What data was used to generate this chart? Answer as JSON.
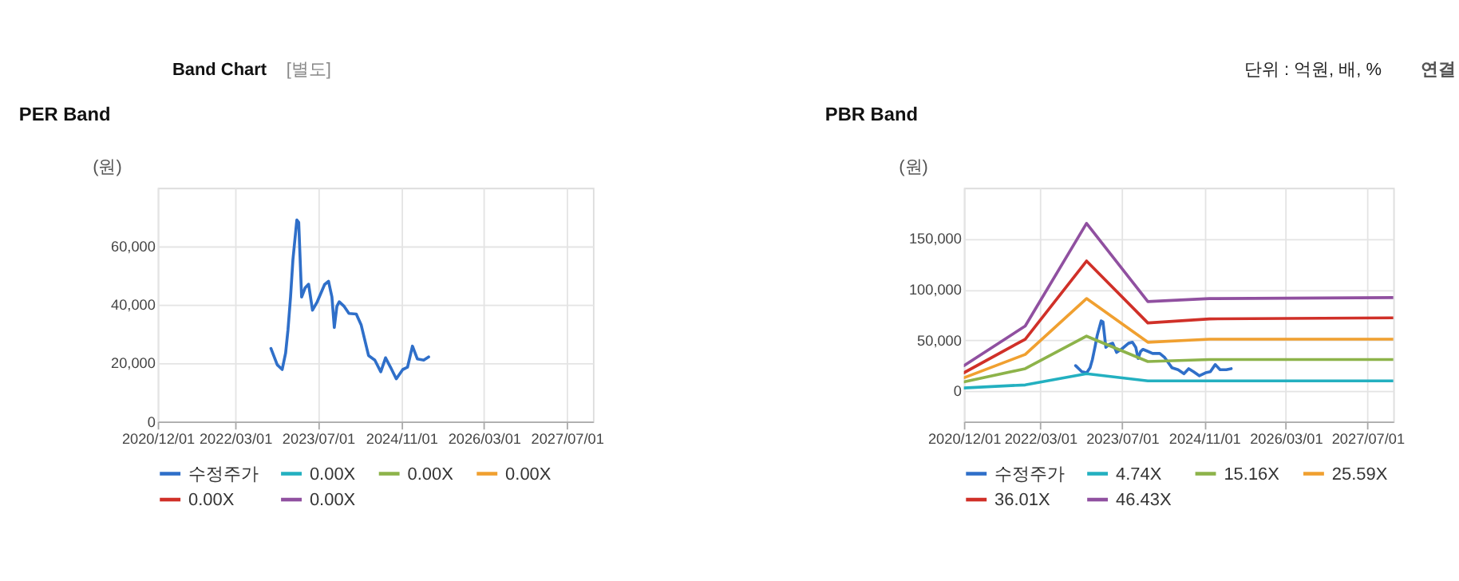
{
  "chart_data": [
    {
      "type": "line",
      "title": "PER Band",
      "ylabel": "(원)",
      "annotations": [
        "Band Chart",
        "[별도]",
        "단위 : 억원, 배, %",
        "연결"
      ],
      "xlim": [
        "2020-12-01",
        "2027-12-01"
      ],
      "xticks": [
        {
          "value": "2020-12-01",
          "label": "2020/12/01"
        },
        {
          "value": "2022-03-01",
          "label": "2022/03/01"
        },
        {
          "value": "2023-07-01",
          "label": "2023/07/01"
        },
        {
          "value": "2024-11-01",
          "label": "2024/11/01"
        },
        {
          "value": "2026-03-01",
          "label": "2026/03/01"
        },
        {
          "value": "2027-07-01",
          "label": "2027/07/01"
        }
      ],
      "ylim": [
        0,
        80000
      ],
      "yticks": [
        0,
        {
          "value": 20000,
          "label": "20,000"
        },
        {
          "value": 40000,
          "label": "40,000"
        },
        {
          "value": 60000,
          "label": "60,000"
        }
      ],
      "grid": true,
      "legend": "bottom",
      "line_style": "solid",
      "series": [
        {
          "name": "수정주가",
          "color": "#2f6fc9",
          "x": [
            "2022-09-27",
            "2022-11-03",
            "2022-12-02",
            "2022-12-22",
            "2023-01-05",
            "2023-01-20",
            "2023-02-03",
            "2023-02-26",
            "2023-03-09",
            "2023-03-26",
            "2023-04-16",
            "2023-05-06",
            "2023-05-29",
            "2023-06-26",
            "2023-08-08",
            "2023-08-31",
            "2023-09-20",
            "2023-10-04",
            "2023-10-19",
            "2023-11-02",
            "2023-12-01",
            "2023-12-29",
            "2024-02-10",
            "2024-03-10",
            "2024-04-22",
            "2024-05-29",
            "2024-07-03",
            "2024-07-31",
            "2024-08-29",
            "2024-10-02",
            "2024-11-09",
            "2024-12-07",
            "2025-01-05",
            "2025-02-03",
            "2025-03-12",
            "2025-04-10"
          ],
          "values": [
            25000,
            19400,
            17800,
            23400,
            31400,
            42600,
            55400,
            69000,
            68200,
            42600,
            45800,
            47000,
            38100,
            41000,
            46900,
            48000,
            42600,
            32200,
            39400,
            41000,
            39400,
            37000,
            36800,
            33000,
            22600,
            21000,
            17000,
            21800,
            18600,
            14600,
            17800,
            18600,
            25800,
            21400,
            21000,
            22100
          ]
        },
        {
          "name": "0.00X",
          "color": "#23b0c0"
        },
        {
          "name": "0.00X",
          "color": "#8db34a"
        },
        {
          "name": "0.00X",
          "color": "#f0a030"
        },
        {
          "name": "0.00X",
          "color": "#d03028"
        },
        {
          "name": "0.00X",
          "color": "#9050a0"
        }
      ]
    },
    {
      "type": "line",
      "title": "PBR Band",
      "ylabel": "(원)",
      "xlim": [
        "2020-12-01",
        "2027-12-01"
      ],
      "xticks": [
        {
          "value": "2020-12-01",
          "label": "2020/12/01"
        },
        {
          "value": "2022-03-01",
          "label": "2022/03/01"
        },
        {
          "value": "2023-07-01",
          "label": "2023/07/01"
        },
        {
          "value": "2024-11-01",
          "label": "2024/11/01"
        },
        {
          "value": "2026-03-01",
          "label": "2026/03/01"
        },
        {
          "value": "2027-07-01",
          "label": "2027/07/01"
        }
      ],
      "ylim": [
        -30000,
        200000
      ],
      "yticks": [
        0,
        {
          "value": 50000,
          "label": "50,000"
        },
        {
          "value": 100000,
          "label": "100,000"
        },
        {
          "value": 150000,
          "label": "150,000"
        }
      ],
      "grid": true,
      "legend": "bottom",
      "line_style": "solid",
      "series": [
        {
          "name": "수정주가",
          "color": "#2f6fc9",
          "x": [
            "2022-09-27",
            "2022-11-03",
            "2022-12-02",
            "2022-12-22",
            "2023-01-05",
            "2023-01-20",
            "2023-02-03",
            "2023-02-26",
            "2023-03-09",
            "2023-03-26",
            "2023-04-16",
            "2023-05-06",
            "2023-05-29",
            "2023-06-26",
            "2023-08-08",
            "2023-08-31",
            "2023-09-20",
            "2023-10-04",
            "2023-10-19",
            "2023-11-02",
            "2023-12-01",
            "2023-12-29",
            "2024-02-10",
            "2024-03-10",
            "2024-04-22",
            "2024-05-29",
            "2024-07-03",
            "2024-07-31",
            "2024-08-29",
            "2024-10-02",
            "2024-11-09",
            "2024-12-07",
            "2025-01-05",
            "2025-02-03",
            "2025-03-12",
            "2025-04-10"
          ],
          "values": [
            25000,
            19000,
            18000,
            23000,
            31000,
            43000,
            55000,
            69000,
            68000,
            43000,
            46000,
            47000,
            38000,
            41000,
            47000,
            48000,
            43000,
            32000,
            39000,
            41000,
            39000,
            37000,
            37000,
            33000,
            23000,
            21000,
            17000,
            22000,
            19000,
            15000,
            18000,
            19000,
            26000,
            21000,
            21000,
            22000
          ]
        },
        {
          "name": "4.74X",
          "color": "#23b0c0",
          "x": [
            "2020-12-01",
            "2021-12-01",
            "2022-12-01",
            "2023-12-01",
            "2024-12-01",
            "2027-12-01"
          ],
          "values": [
            3000,
            6000,
            17000,
            10000,
            10000,
            10000
          ]
        },
        {
          "name": "15.16X",
          "color": "#8db34a",
          "x": [
            "2020-12-01",
            "2021-12-01",
            "2022-12-01",
            "2023-12-01",
            "2024-12-01",
            "2027-12-01"
          ],
          "values": [
            9000,
            22000,
            54000,
            29000,
            31000,
            31000
          ]
        },
        {
          "name": "25.59X",
          "color": "#f0a030",
          "x": [
            "2020-12-01",
            "2021-12-01",
            "2022-12-01",
            "2023-12-01",
            "2024-12-01",
            "2027-12-01"
          ],
          "values": [
            13000,
            36000,
            91000,
            48000,
            51000,
            51000
          ]
        },
        {
          "name": "36.01X",
          "color": "#d03028",
          "x": [
            "2020-12-01",
            "2021-12-01",
            "2022-12-01",
            "2023-12-01",
            "2024-12-01",
            "2027-12-01"
          ],
          "values": [
            18000,
            51000,
            128000,
            67000,
            71000,
            72000
          ]
        },
        {
          "name": "46.43X",
          "color": "#9050a0",
          "x": [
            "2020-12-01",
            "2021-12-01",
            "2022-12-01",
            "2023-12-01",
            "2024-12-01",
            "2027-12-01"
          ],
          "values": [
            25000,
            64000,
            165000,
            88000,
            91000,
            92000
          ]
        }
      ]
    }
  ]
}
